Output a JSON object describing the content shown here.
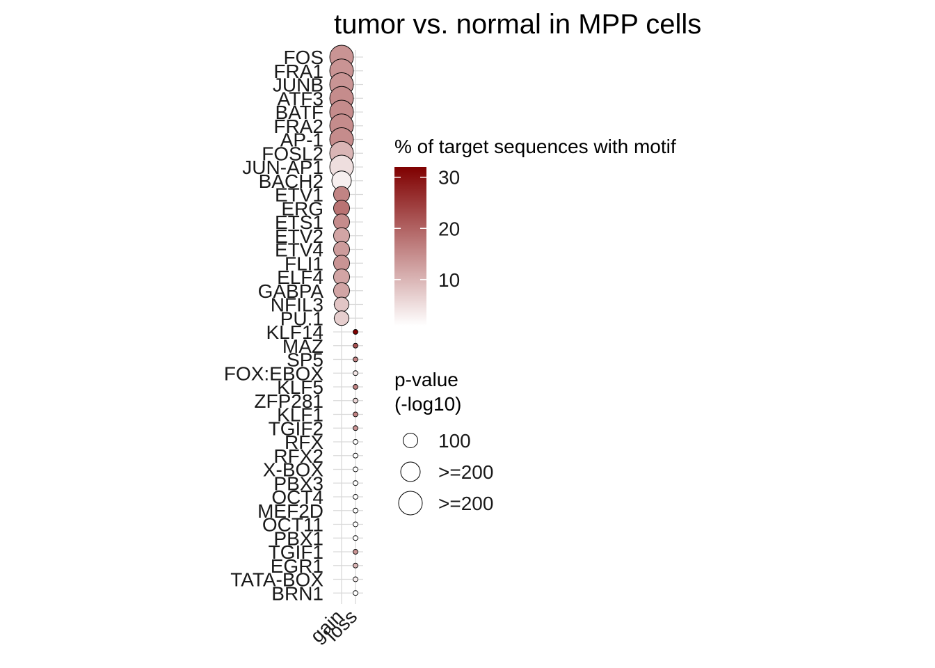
{
  "chart_data": {
    "type": "scatter",
    "title": "tumor vs. normal in MPP cells",
    "xlabel": "",
    "ylabel": "",
    "categories_x": [
      "gain",
      "loss"
    ],
    "categories_y": [
      "FOS",
      "FRA1",
      "JUNB",
      "ATF3",
      "BATF",
      "FRA2",
      "AP-1",
      "FOSL2",
      "JUN-AP1",
      "BACH2",
      "ETV1",
      "ERG",
      "ETS1",
      "ETV2",
      "ETV4",
      "FLI1",
      "ELF4",
      "GABPA",
      "NFIL3",
      "PU.1",
      "KLF14",
      "MAZ",
      "SP5",
      "FOX:EBOX",
      "KLF5",
      "ZFP281",
      "KLF1",
      "TGIF2",
      "RFX",
      "RFX2",
      "X-BOX",
      "PBX3",
      "OCT4",
      "MEF2D",
      "OCT11",
      "PBX1",
      "TGIF1",
      "EGR1",
      "TATA-BOX",
      "BRN1"
    ],
    "grid": true,
    "points": [
      {
        "motif": "FOS",
        "group": "gain",
        "pct": 14,
        "pval": 300
      },
      {
        "motif": "FRA1",
        "group": "gain",
        "pct": 14,
        "pval": 300
      },
      {
        "motif": "JUNB",
        "group": "gain",
        "pct": 14,
        "pval": 300
      },
      {
        "motif": "ATF3",
        "group": "gain",
        "pct": 15,
        "pval": 300
      },
      {
        "motif": "BATF",
        "group": "gain",
        "pct": 15,
        "pval": 300
      },
      {
        "motif": "FRA2",
        "group": "gain",
        "pct": 15,
        "pval": 300
      },
      {
        "motif": "AP-1",
        "group": "gain",
        "pct": 15,
        "pval": 300
      },
      {
        "motif": "FOSL2",
        "group": "gain",
        "pct": 10,
        "pval": 300
      },
      {
        "motif": "JUN-AP1",
        "group": "gain",
        "pct": 5,
        "pval": 300
      },
      {
        "motif": "BACH2",
        "group": "gain",
        "pct": 3,
        "pval": 200
      },
      {
        "motif": "ETV1",
        "group": "gain",
        "pct": 16,
        "pval": 150
      },
      {
        "motif": "ERG",
        "group": "gain",
        "pct": 18,
        "pval": 150
      },
      {
        "motif": "ETS1",
        "group": "gain",
        "pct": 15,
        "pval": 150
      },
      {
        "motif": "ETV2",
        "group": "gain",
        "pct": 12,
        "pval": 150
      },
      {
        "motif": "ETV4",
        "group": "gain",
        "pct": 13,
        "pval": 150
      },
      {
        "motif": "FLI1",
        "group": "gain",
        "pct": 14,
        "pval": 150
      },
      {
        "motif": "ELF4",
        "group": "gain",
        "pct": 12,
        "pval": 140
      },
      {
        "motif": "GABPA",
        "group": "gain",
        "pct": 12,
        "pval": 140
      },
      {
        "motif": "NFIL3",
        "group": "gain",
        "pct": 8,
        "pval": 130
      },
      {
        "motif": "PU.1",
        "group": "gain",
        "pct": 7,
        "pval": 130
      },
      {
        "motif": "KLF14",
        "group": "loss",
        "pct": 32,
        "pval": 3
      },
      {
        "motif": "MAZ",
        "group": "loss",
        "pct": 22,
        "pval": 3
      },
      {
        "motif": "SP5",
        "group": "loss",
        "pct": 16,
        "pval": 3
      },
      {
        "motif": "FOX:EBOX",
        "group": "loss",
        "pct": 4,
        "pval": 3
      },
      {
        "motif": "KLF5",
        "group": "loss",
        "pct": 16,
        "pval": 3
      },
      {
        "motif": "ZFP281",
        "group": "loss",
        "pct": 6,
        "pval": 3
      },
      {
        "motif": "KLF1",
        "group": "loss",
        "pct": 16,
        "pval": 3
      },
      {
        "motif": "TGIF2",
        "group": "loss",
        "pct": 14,
        "pval": 3
      },
      {
        "motif": "RFX",
        "group": "loss",
        "pct": 1,
        "pval": 3
      },
      {
        "motif": "RFX2",
        "group": "loss",
        "pct": 1,
        "pval": 3
      },
      {
        "motif": "X-BOX",
        "group": "loss",
        "pct": 1,
        "pval": 3
      },
      {
        "motif": "PBX3",
        "group": "loss",
        "pct": 1,
        "pval": 3
      },
      {
        "motif": "OCT4",
        "group": "loss",
        "pct": 1,
        "pval": 3
      },
      {
        "motif": "MEF2D",
        "group": "loss",
        "pct": 1,
        "pval": 3
      },
      {
        "motif": "OCT11",
        "group": "loss",
        "pct": 1,
        "pval": 3
      },
      {
        "motif": "PBX1",
        "group": "loss",
        "pct": 1,
        "pval": 3
      },
      {
        "motif": "TGIF1",
        "group": "loss",
        "pct": 14,
        "pval": 3
      },
      {
        "motif": "EGR1",
        "group": "loss",
        "pct": 10,
        "pval": 3
      },
      {
        "motif": "TATA-BOX",
        "group": "loss",
        "pct": 3,
        "pval": 3
      },
      {
        "motif": "BRN1",
        "group": "loss",
        "pct": 1,
        "pval": 3
      }
    ],
    "color_legend": {
      "title": "% of target sequences with motif",
      "ticks": [
        10,
        20,
        30
      ],
      "range": [
        1,
        32
      ],
      "low_color": "#ffffff",
      "high_color": "#7f0000"
    },
    "size_legend": {
      "title_lines": [
        "p-value",
        "(-log10)"
      ],
      "entries": [
        {
          "label": "100",
          "value": 100
        },
        {
          "label": ">=200",
          "value": 200
        },
        {
          "label": ">=200",
          "value": 300
        }
      ]
    }
  }
}
